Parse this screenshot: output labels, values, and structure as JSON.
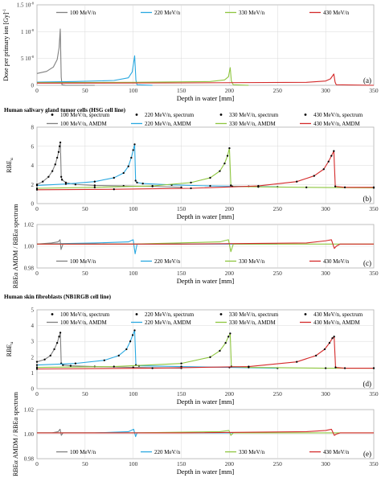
{
  "colors": {
    "e100": "#808080",
    "e220": "#29a8e0",
    "e330": "#8ec63f",
    "e430": "#d42a2a",
    "spectrum_marker": "#000000",
    "frame": "#b0b0b0",
    "grid": "#d9d9d9"
  },
  "section_headings": {
    "hsg": "Human salivary gland tumor cells (HSG cell line)",
    "nb1rgb": "Human skin fibroblasts (NB1RGB cell line)"
  },
  "chart_data": [
    {
      "id": "a",
      "type": "line",
      "panel_label": "(a)",
      "xlabel": "Depth in water [mm]",
      "ylabel": "Dose per primary ion [Gy]",
      "ylabel_exponent": "-1",
      "xlim": [
        0,
        350
      ],
      "ylim": [
        0,
        1.5e-08
      ],
      "x_ticks": [
        "0",
        "50",
        "100",
        "150",
        "200",
        "250",
        "300",
        "350"
      ],
      "y_ticks": [
        {
          "value": 0,
          "label": "0"
        },
        {
          "value": 5e-09,
          "label": "5 10"
        },
        {
          "value": 1e-08,
          "label": "1 10"
        },
        {
          "value": 1.5e-08,
          "label": "1.5 10"
        }
      ],
      "y_tick_exponent": "-8",
      "grid": true,
      "legend_position": "top",
      "series": [
        {
          "name": "100 MeV/n",
          "color_key": "e100",
          "x": [
            0,
            10,
            17,
            21,
            23,
            24.2,
            25.2,
            26,
            30,
            60
          ],
          "y": [
            2.2e-09,
            2.6e-09,
            3.4e-09,
            4.8e-09,
            7e-09,
            1.05e-08,
            1.5e-09,
            1e-10,
            0,
            0
          ]
        },
        {
          "name": "220 MeV/n",
          "color_key": "e220",
          "x": [
            0,
            40,
            80,
            95,
            99,
            101.5,
            102.8,
            104,
            120
          ],
          "y": [
            6e-10,
            7e-10,
            9e-10,
            1.4e-09,
            2.5e-09,
            5.5e-09,
            1e-09,
            1e-10,
            0
          ]
        },
        {
          "name": "330 MeV/n",
          "color_key": "e330",
          "x": [
            0,
            100,
            180,
            195,
            199,
            200.8,
            202,
            204,
            220
          ],
          "y": [
            5e-10,
            5.5e-10,
            7e-10,
            1e-09,
            1.6e-09,
            3.3e-09,
            8e-10,
            1e-10,
            0
          ]
        },
        {
          "name": "430 MeV/n",
          "color_key": "e430",
          "x": [
            0,
            150,
            280,
            300,
            305,
            308.5,
            309.8,
            311,
            350
          ],
          "y": [
            4e-10,
            4.5e-10,
            5.5e-10,
            8e-10,
            1.2e-09,
            2.1e-09,
            6e-10,
            1e-10,
            0
          ]
        }
      ]
    },
    {
      "id": "b",
      "type": "line",
      "panel_label": "(b)",
      "xlabel": "Depth in water [mm]",
      "ylabel": "RBE",
      "ylabel_subscript": "α",
      "xlim": [
        0,
        350
      ],
      "ylim": [
        0,
        8
      ],
      "x_ticks": [
        "0",
        "50",
        "100",
        "150",
        "200",
        "250",
        "300",
        "350"
      ],
      "y_ticks": [
        "0",
        "2",
        "4",
        "6",
        "8"
      ],
      "grid": true,
      "legend_position": "top",
      "legend": [
        {
          "label": "100 MeV/n, spectrum",
          "kind": "markers"
        },
        {
          "label": "220 MeV/n, spectrum",
          "kind": "markers"
        },
        {
          "label": "330 MeV/n, spectrum",
          "kind": "markers"
        },
        {
          "label": "430 MeV/n, spectrum",
          "kind": "markers"
        },
        {
          "label": "100 MeV/n, AMDM",
          "kind": "line",
          "color_key": "e100"
        },
        {
          "label": "220 MeV/n, AMDM",
          "kind": "line",
          "color_key": "e220"
        },
        {
          "label": "330 MeV/n, AMDM",
          "kind": "line",
          "color_key": "e330"
        },
        {
          "label": "430 MeV/n, AMDM",
          "kind": "line",
          "color_key": "e430"
        }
      ],
      "series": [
        {
          "name": "100 MeV/n, AMDM",
          "color_key": "e100",
          "markers": true,
          "x": [
            0,
            6,
            12,
            16,
            19,
            21,
            22.5,
            23.5,
            24.3,
            25.2,
            26,
            30,
            40,
            60,
            90,
            120,
            150
          ],
          "y": [
            2.0,
            2.3,
            2.8,
            3.4,
            4.1,
            4.8,
            5.4,
            6.0,
            6.4,
            2.8,
            2.5,
            2.2,
            2.0,
            1.9,
            1.85,
            1.8,
            1.7
          ]
        },
        {
          "name": "220 MeV/n, AMDM",
          "color_key": "e220",
          "markers": true,
          "x": [
            0,
            30,
            60,
            80,
            90,
            95,
            98,
            100,
            101.5,
            102.5,
            104,
            110,
            140,
            180,
            220,
            250
          ],
          "y": [
            1.9,
            2.05,
            2.3,
            2.7,
            3.2,
            3.9,
            4.8,
            5.6,
            6.2,
            2.4,
            2.2,
            2.1,
            1.95,
            1.85,
            1.8,
            1.75
          ]
        },
        {
          "name": "330 MeV/n, AMDM",
          "color_key": "e330",
          "markers": true,
          "x": [
            0,
            60,
            120,
            160,
            180,
            190,
            195,
            198,
            200,
            201.5,
            203,
            230,
            280,
            350
          ],
          "y": [
            1.6,
            1.7,
            1.85,
            2.2,
            2.7,
            3.4,
            4.2,
            5.0,
            5.8,
            1.9,
            1.8,
            1.75,
            1.7,
            1.65
          ]
        },
        {
          "name": "430 MeV/n, AMDM",
          "color_key": "e430",
          "markers": true,
          "x": [
            0,
            80,
            160,
            230,
            270,
            288,
            298,
            303,
            306,
            308.5,
            310,
            320,
            350
          ],
          "y": [
            1.45,
            1.5,
            1.6,
            1.85,
            2.3,
            2.9,
            3.6,
            4.4,
            5.0,
            5.5,
            1.8,
            1.7,
            1.7
          ]
        }
      ]
    },
    {
      "id": "c",
      "type": "line",
      "panel_label": "(c)",
      "xlabel": "Depth in water [mm]",
      "ylabel": "RBEα AMDM / RBEα spectrum",
      "xlim": [
        0,
        350
      ],
      "ylim": [
        0.98,
        1.02
      ],
      "x_ticks": [
        "0",
        "50",
        "100",
        "150",
        "200",
        "250",
        "300",
        "350"
      ],
      "y_ticks": [
        "0.98",
        "1.00",
        "1.02"
      ],
      "grid": true,
      "legend_position": "bottom",
      "series": [
        {
          "name": "100 MeV/n",
          "color_key": "e100",
          "x": [
            0,
            15,
            22,
            24,
            25,
            27,
            60,
            150
          ],
          "y": [
            1.002,
            1.003,
            1.004,
            1.006,
            0.997,
            1.002,
            1.002,
            1.002
          ]
        },
        {
          "name": "220 MeV/n",
          "color_key": "e220",
          "x": [
            0,
            60,
            95,
            100,
            102,
            104,
            150,
            250
          ],
          "y": [
            1.002,
            1.003,
            1.004,
            1.006,
            0.993,
            1.002,
            1.002,
            1.002
          ]
        },
        {
          "name": "330 MeV/n",
          "color_key": "e330",
          "x": [
            0,
            100,
            190,
            199,
            201.5,
            204,
            260,
            350
          ],
          "y": [
            1.002,
            1.002,
            1.004,
            1.006,
            0.995,
            1.002,
            1.002,
            1.002
          ]
        },
        {
          "name": "430 MeV/n",
          "color_key": "e430",
          "x": [
            0,
            150,
            280,
            300,
            306,
            309,
            311,
            315,
            350
          ],
          "y": [
            1.002,
            1.002,
            1.003,
            1.005,
            1.006,
            0.998,
            1.0,
            1.002,
            1.002
          ]
        }
      ]
    },
    {
      "id": "d",
      "type": "line",
      "panel_label": "(d)",
      "xlabel": "Depth in water [mm]",
      "ylabel": "RBE",
      "ylabel_subscript": "α",
      "xlim": [
        0,
        350
      ],
      "ylim": [
        0,
        5
      ],
      "x_ticks": [
        "0",
        "50",
        "100",
        "150",
        "200",
        "250",
        "300",
        "350"
      ],
      "y_ticks": [
        "0",
        "1",
        "2",
        "3",
        "4",
        "5"
      ],
      "grid": true,
      "legend_position": "top",
      "legend": [
        {
          "label": "100 MeV/n, spectrum",
          "kind": "markers"
        },
        {
          "label": "220 MeV/n, spectrum",
          "kind": "markers"
        },
        {
          "label": "330 MeV/n, spectrum",
          "kind": "markers"
        },
        {
          "label": "430 MeV/n, spectrum",
          "kind": "markers"
        },
        {
          "label": "100 MeV/n, AMDM",
          "kind": "line",
          "color_key": "e100"
        },
        {
          "label": "220 MeV/n, AMDM",
          "kind": "line",
          "color_key": "e220"
        },
        {
          "label": "330 MeV/n, AMDM",
          "kind": "line",
          "color_key": "e330"
        },
        {
          "label": "430 MeV/n, AMDM",
          "kind": "line",
          "color_key": "e430"
        }
      ],
      "series": [
        {
          "name": "100 MeV/n, AMDM",
          "color_key": "e100",
          "markers": true,
          "x": [
            0,
            8,
            14,
            18,
            21,
            23,
            24.3,
            25.2,
            27,
            35,
            60,
            100,
            150
          ],
          "y": [
            1.7,
            1.85,
            2.1,
            2.5,
            2.9,
            3.3,
            3.55,
            1.6,
            1.5,
            1.45,
            1.4,
            1.35,
            1.3
          ]
        },
        {
          "name": "220 MeV/n, AMDM",
          "color_key": "e220",
          "markers": true,
          "x": [
            0,
            40,
            70,
            85,
            93,
            97,
            99.5,
            101.5,
            102.8,
            106,
            150,
            200,
            250
          ],
          "y": [
            1.5,
            1.6,
            1.8,
            2.1,
            2.5,
            3.0,
            3.4,
            3.7,
            1.5,
            1.45,
            1.4,
            1.35,
            1.3
          ]
        },
        {
          "name": "330 MeV/n, AMDM",
          "color_key": "e330",
          "markers": true,
          "x": [
            0,
            80,
            150,
            180,
            190,
            196,
            199,
            200.8,
            202,
            220,
            300,
            350
          ],
          "y": [
            1.35,
            1.4,
            1.6,
            2.0,
            2.4,
            2.9,
            3.3,
            3.5,
            1.4,
            1.35,
            1.3,
            1.3
          ]
        },
        {
          "name": "430 MeV/n, AMDM",
          "color_key": "e430",
          "markers": true,
          "x": [
            0,
            120,
            220,
            270,
            290,
            299,
            304,
            307,
            308.8,
            310.3,
            320,
            350
          ],
          "y": [
            1.25,
            1.3,
            1.4,
            1.7,
            2.1,
            2.5,
            2.9,
            3.2,
            3.3,
            1.35,
            1.3,
            1.3
          ]
        }
      ]
    },
    {
      "id": "e",
      "type": "line",
      "panel_label": "(e)",
      "xlabel": "Depth in water [mm]",
      "ylabel": "RBEα AMDM / RBEα spectrum",
      "xlim": [
        0,
        350
      ],
      "ylim": [
        0.98,
        1.02
      ],
      "x_ticks": [
        "0",
        "50",
        "100",
        "150",
        "200",
        "250",
        "300",
        "350"
      ],
      "y_ticks": [
        "0.98",
        "1.00",
        "1.02"
      ],
      "grid": true,
      "legend_position": "bottom",
      "series": [
        {
          "name": "100 MeV/n",
          "color_key": "e100",
          "x": [
            0,
            15,
            22,
            24,
            25.3,
            27,
            60,
            150
          ],
          "y": [
            1.001,
            1.001,
            1.002,
            1.004,
            0.999,
            1.001,
            1.001,
            1.001
          ]
        },
        {
          "name": "220 MeV/n",
          "color_key": "e220",
          "x": [
            0,
            60,
            95,
            100.5,
            102.5,
            104,
            150,
            250
          ],
          "y": [
            1.001,
            1.001,
            1.002,
            1.004,
            0.998,
            1.001,
            1.001,
            1.001
          ]
        },
        {
          "name": "330 MeV/n",
          "color_key": "e330",
          "x": [
            0,
            100,
            190,
            199.5,
            201.5,
            204,
            260,
            350
          ],
          "y": [
            1.001,
            1.001,
            1.002,
            1.003,
            0.999,
            1.001,
            1.001,
            1.001
          ]
        },
        {
          "name": "430 MeV/n",
          "color_key": "e430",
          "x": [
            0,
            150,
            280,
            300,
            306,
            309,
            311,
            315,
            350
          ],
          "y": [
            1.001,
            1.001,
            1.002,
            1.003,
            1.004,
            0.999,
            1.0,
            1.001,
            1.001
          ]
        }
      ]
    }
  ]
}
